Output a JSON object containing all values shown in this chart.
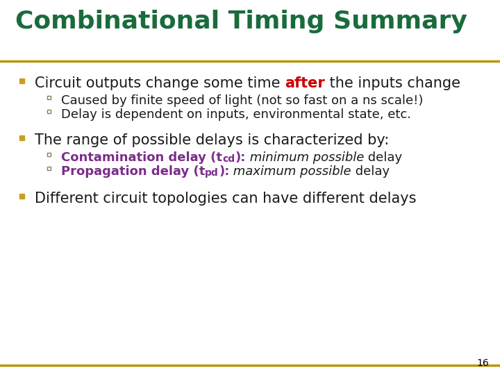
{
  "title": "Combinational Timing Summary",
  "title_color": "#1a6b3c",
  "title_fontsize": 26,
  "background_color": "#ffffff",
  "line_color": "#b8960c",
  "page_number": "16",
  "bullet_color": "#c8a020",
  "sub_bullet_color": "#808060",
  "body_fontsize": 15,
  "sub_fontsize": 13,
  "bullet1_prefix": "Circuit outputs change some time ",
  "bullet1_highlight": "after",
  "bullet1_highlight_color": "#cc0000",
  "bullet1_suffix": " the inputs change",
  "bullet1_sub": [
    "Caused by finite speed of light (not so fast on a ns scale!)",
    "Delay is dependent on inputs, environmental state, etc."
  ],
  "bullet2_text": "The range of possible delays is characterized by:",
  "bullet2_sub": [
    {
      "bold": "Contamination delay (t",
      "sub": "cd",
      "after": "):",
      "italic": " minimum possible",
      "normal": " delay"
    },
    {
      "bold": "Propagation delay (t",
      "sub": "pd",
      "after": "):",
      "italic": " maximum possible",
      "normal": " delay"
    }
  ],
  "bullet2_purple": "#7b2d8b",
  "bullet3_text": "Different circuit topologies can have different delays"
}
